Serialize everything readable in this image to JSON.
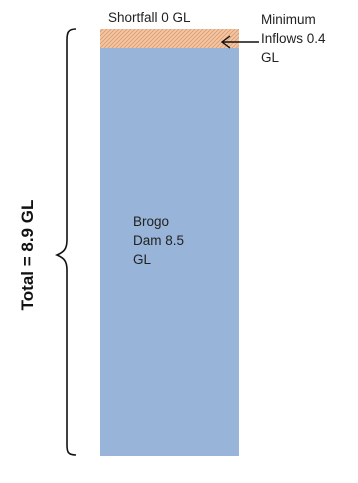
{
  "diagram": {
    "shortfall_label": "Shortfall  0 GL",
    "inflows_label_lines": [
      "Minimum",
      "Inflows 0.4",
      "GL"
    ],
    "dam_label_lines": [
      "Brogo",
      "Dam  8.5",
      "GL"
    ],
    "total_label": "Total = 8.9 GL",
    "colors": {
      "dam_fill": "#98b4d8",
      "inflows_fill": "#f4c6a2",
      "inflows_hatch": "#d89a72",
      "bracket": "#111111",
      "arrow": "#111111"
    }
  }
}
